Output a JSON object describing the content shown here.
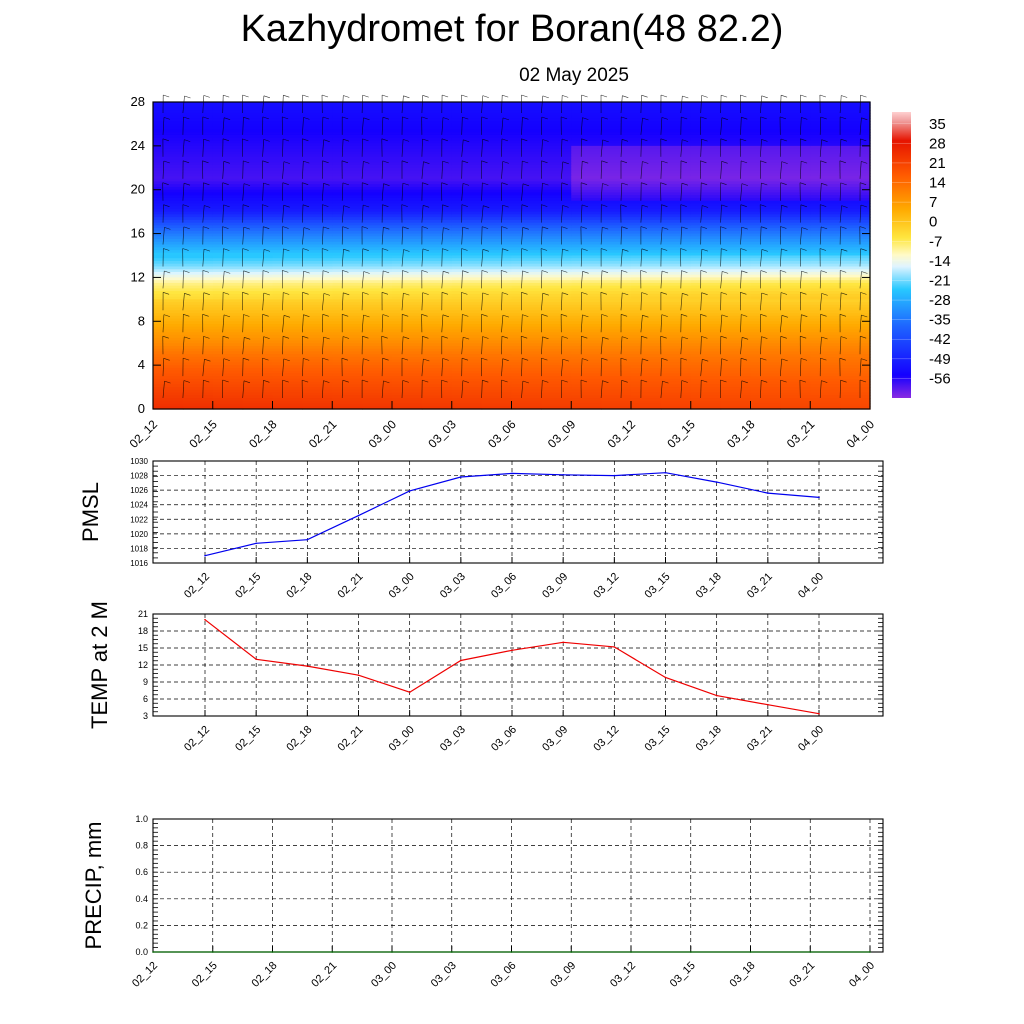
{
  "title": "Kazhydromet for Boran(48 82.2)",
  "subtitle": "02 May 2025",
  "colors": {
    "pmsl_line": "#0000ee",
    "temp_line": "#ee0000",
    "precip_line": "#006400",
    "grid": "#000000"
  },
  "chart_data": [
    {
      "type": "heatmap",
      "title": "",
      "xlabel": "",
      "ylabel": "",
      "x": [
        "02_12",
        "02_15",
        "02_18",
        "02_21",
        "03_00",
        "03_03",
        "03_06",
        "03_09",
        "03_12",
        "03_15",
        "03_18",
        "03_21",
        "04_00"
      ],
      "y_ticks": [
        "0",
        "4",
        "8",
        "12",
        "16",
        "20",
        "24",
        "28"
      ],
      "ylim": [
        0,
        28
      ],
      "colorbar": {
        "labels": [
          "35",
          "28",
          "21",
          "14",
          "7",
          "0",
          "-7",
          "-14",
          "-21",
          "-28",
          "-35",
          "-42",
          "-49",
          "-56"
        ],
        "range": [
          -63,
          42
        ]
      },
      "temperature_profile": [
        {
          "level": 0,
          "value": 20
        },
        {
          "level": 2,
          "value": 16
        },
        {
          "level": 5,
          "value": 10
        },
        {
          "level": 8,
          "value": 2
        },
        {
          "level": 10.5,
          "value": -5
        },
        {
          "level": 11.5,
          "value": -9
        },
        {
          "level": 13,
          "value": -22
        },
        {
          "level": 15,
          "value": -33
        },
        {
          "level": 16.5,
          "value": -42
        },
        {
          "level": 18,
          "value": -52
        },
        {
          "level": 21,
          "value": -59
        },
        {
          "level": 24,
          "value": -57
        },
        {
          "level": 28,
          "value": -54
        }
      ],
      "wind_barbs": "present"
    },
    {
      "type": "line",
      "ylabel": "PMSL",
      "categories": [
        "02_12",
        "02_15",
        "02_18",
        "02_21",
        "03_00",
        "03_03",
        "03_06",
        "03_09",
        "03_12",
        "03_15",
        "03_18",
        "03_21",
        "04_00"
      ],
      "y_ticks": [
        "1016",
        "1018",
        "1020",
        "1022",
        "1024",
        "1026",
        "1028",
        "1030"
      ],
      "ylim": [
        1016,
        1030
      ],
      "grid": true,
      "series": [
        {
          "values": [
            1017.0,
            1018.7,
            1019.2,
            1022.5,
            1025.9,
            1027.8,
            1028.3,
            1028.1,
            1028.0,
            1028.4,
            1027.1,
            1025.6,
            1025.0
          ]
        }
      ]
    },
    {
      "type": "line",
      "ylabel": "TEMP at 2 M",
      "categories": [
        "02_12",
        "02_15",
        "02_18",
        "02_21",
        "03_00",
        "03_03",
        "03_06",
        "03_09",
        "03_12",
        "03_15",
        "03_18",
        "03_21",
        "04_00"
      ],
      "y_ticks": [
        "3",
        "6",
        "9",
        "12",
        "15",
        "18",
        "21"
      ],
      "ylim": [
        3,
        21
      ],
      "grid": true,
      "series": [
        {
          "values": [
            20.0,
            13.0,
            11.8,
            10.2,
            7.2,
            12.8,
            14.6,
            16.0,
            15.2,
            9.8,
            6.6,
            5.0,
            3.4
          ]
        }
      ]
    },
    {
      "type": "line",
      "ylabel": "PRECIP, mm",
      "categories": [
        "02_12",
        "02_15",
        "02_18",
        "02_21",
        "03_00",
        "03_03",
        "03_06",
        "03_09",
        "03_12",
        "03_15",
        "03_18",
        "03_21",
        "04_00"
      ],
      "y_ticks": [
        "0.0",
        "0.2",
        "0.4",
        "0.6",
        "0.8",
        "1.0"
      ],
      "ylim": [
        0,
        1
      ],
      "grid": true,
      "series": [
        {
          "values": [
            0,
            0,
            0,
            0,
            0,
            0,
            0,
            0,
            0,
            0,
            0,
            0,
            0
          ]
        }
      ]
    }
  ]
}
